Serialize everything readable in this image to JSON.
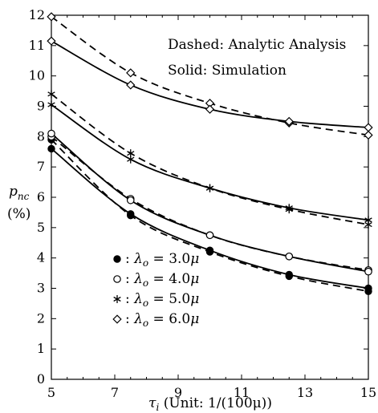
{
  "chart_data": {
    "type": "line",
    "xlabel": "τi (Unit: 1/(100μ))",
    "ylabel": "pnc",
    "ylabel_unit": "(%)",
    "xlim": [
      5,
      15
    ],
    "ylim": [
      0,
      12
    ],
    "xticks": [
      5,
      7,
      9,
      11,
      13,
      15
    ],
    "yticks": [
      0,
      1,
      2,
      3,
      4,
      5,
      6,
      7,
      8,
      9,
      10,
      11,
      12
    ],
    "annotations": [
      "Dashed: Analytic Analysis",
      "Solid: Simulation"
    ],
    "legend_position": "lower-left",
    "x": [
      5,
      7.5,
      10,
      12.5,
      15
    ],
    "series": [
      {
        "name": "λo = 3.0μ",
        "marker": "filled-circle",
        "analytic": [
          7.9,
          5.4,
          4.2,
          3.4,
          2.9
        ],
        "simulation": [
          7.6,
          5.45,
          4.25,
          3.45,
          3.0
        ]
      },
      {
        "name": "λo = 4.0μ",
        "marker": "open-circle",
        "analytic": [
          8.0,
          5.95,
          4.75,
          4.05,
          3.6
        ],
        "simulation": [
          8.1,
          5.9,
          4.75,
          4.05,
          3.55
        ]
      },
      {
        "name": "λo = 5.0μ",
        "marker": "asterisk",
        "analytic": [
          9.4,
          7.45,
          6.3,
          5.6,
          5.1
        ],
        "simulation": [
          9.05,
          7.25,
          6.3,
          5.65,
          5.25
        ]
      },
      {
        "name": "λo = 6.0μ",
        "marker": "open-diamond",
        "analytic": [
          11.95,
          10.1,
          9.1,
          8.45,
          8.05
        ],
        "simulation": [
          11.15,
          9.7,
          8.9,
          8.5,
          8.3
        ]
      }
    ]
  }
}
